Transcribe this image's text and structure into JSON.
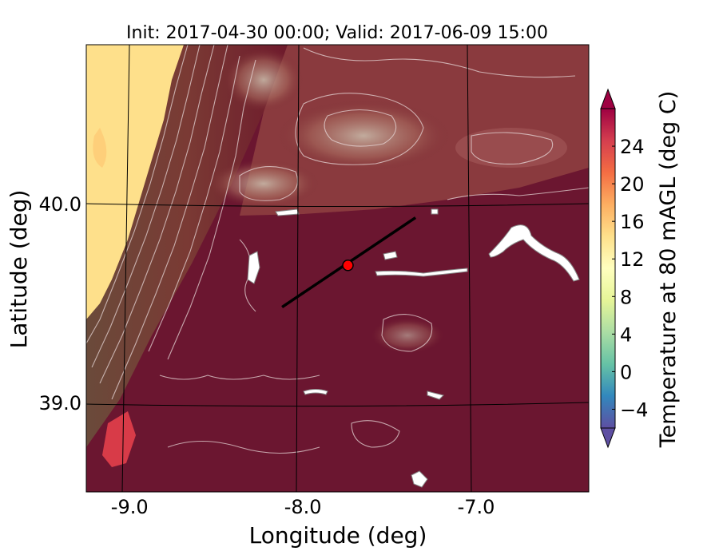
{
  "figure": {
    "title": "Init: 2017-04-30 00:00; Valid: 2017-06-09 15:00",
    "xlabel": "Longitude (deg)",
    "ylabel": "Latitude (deg)",
    "colorbar_label": "Temperature at 80 mAGL (deg C)"
  },
  "map_axes": {
    "x_ticks": [
      {
        "value": -9.0,
        "label": "-9.0"
      },
      {
        "value": -8.0,
        "label": "-8.0"
      },
      {
        "value": -7.0,
        "label": "-7.0"
      }
    ],
    "y_ticks": [
      {
        "value": 40.0,
        "label": "40.0"
      },
      {
        "value": 39.0,
        "label": "39.0"
      }
    ],
    "xlim": [
      -9.25,
      -6.35
    ],
    "ylim": [
      38.55,
      40.8
    ],
    "colormap": "Spectral_r"
  },
  "colorbar": {
    "range": [
      -6,
      28
    ],
    "ticks": [
      {
        "value": 24,
        "label": "24"
      },
      {
        "value": 20,
        "label": "20"
      },
      {
        "value": 16,
        "label": "16"
      },
      {
        "value": 12,
        "label": "12"
      },
      {
        "value": 8,
        "label": "8"
      },
      {
        "value": 4,
        "label": "4"
      },
      {
        "value": 0,
        "label": "0"
      },
      {
        "value": -4,
        "label": "−4"
      }
    ],
    "extend": "both"
  },
  "cross_section": {
    "start": {
      "lon": -8.12,
      "lat": 39.48
    },
    "end": {
      "lon": -7.35,
      "lat": 39.93
    },
    "line_color": "#000000"
  },
  "point_marker": {
    "lon": -7.74,
    "lat": 39.69,
    "color": "#ff0000"
  }
}
